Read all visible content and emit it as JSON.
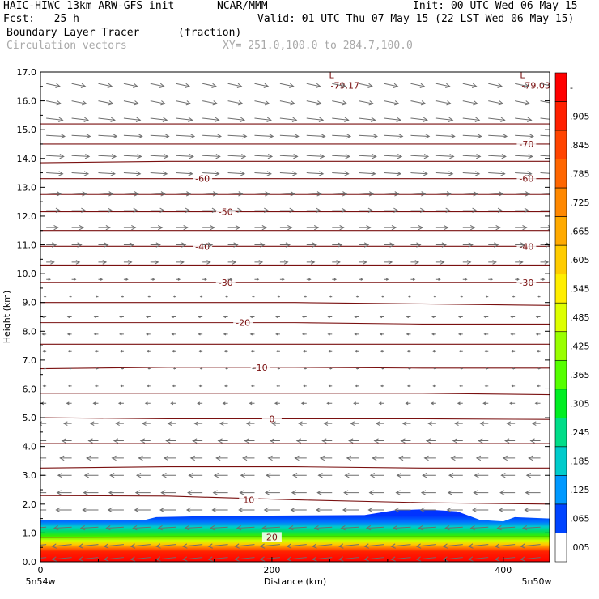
{
  "header": {
    "left1": "HAIC-HIWC 13km ARW-GFS init",
    "center1": "NCAR/MMM",
    "right1": "Init: 00 UTC Wed 06 May 15",
    "left2": "Fcst:   25 h",
    "right2": "Valid: 01 UTC Thu 07 May 15 (22 LST Wed 06 May 15)",
    "field_name": "Boundary Layer Tracer",
    "field_units": "(fraction)",
    "vector_label": "Circulation vectors",
    "xy_label": "XY= 251.0,100.0 to 284.7,100.0"
  },
  "chart_data": {
    "type": "heatmap",
    "title": "Boundary Layer Tracer",
    "xlabel": "Distance (km)",
    "ylabel": "Height (km)",
    "xlim": [
      0,
      440
    ],
    "ylim": [
      0,
      17
    ],
    "x_ticks": [
      0,
      200,
      400
    ],
    "x_tick_labels": [
      "0",
      "200",
      "400"
    ],
    "x_end_labels": [
      "5n54w",
      "5n50w"
    ],
    "y_ticks": [
      0,
      1,
      2,
      3,
      4,
      5,
      6,
      7,
      8,
      9,
      10,
      11,
      12,
      13,
      14,
      15,
      16,
      17
    ],
    "y_tick_labels": [
      "0.0",
      "1.0",
      "2.0",
      "3.0",
      "4.0",
      "5.0",
      "6.0",
      "7.0",
      "8.0",
      "9.0",
      "10.0",
      "11.0",
      "12.0",
      "13.0",
      "14.0",
      "15.0",
      "16.0",
      "17.0"
    ],
    "colorbar_labels": [
      "-",
      ".905",
      ".845",
      ".785",
      ".725",
      ".665",
      ".605",
      ".545",
      ".485",
      ".425",
      ".365",
      ".305",
      ".245",
      ".185",
      ".125",
      ".065",
      ".005"
    ],
    "colorbar_colors": [
      "#ff0000",
      "#ff2000",
      "#ff4400",
      "#ff6600",
      "#ff8800",
      "#ffaa00",
      "#ffcc00",
      "#ffee00",
      "#ddff00",
      "#99ff00",
      "#55ff00",
      "#00ee22",
      "#00dd88",
      "#00cccc",
      "#0099ff",
      "#0044ff",
      "#ffffff"
    ],
    "tracer_top_profile": [
      [
        0,
        1.45
      ],
      [
        90,
        1.45
      ],
      [
        100,
        1.55
      ],
      [
        140,
        1.58
      ],
      [
        200,
        1.6
      ],
      [
        280,
        1.62
      ],
      [
        305,
        1.78
      ],
      [
        330,
        1.82
      ],
      [
        360,
        1.75
      ],
      [
        380,
        1.45
      ],
      [
        400,
        1.4
      ],
      [
        410,
        1.55
      ],
      [
        440,
        1.5
      ]
    ],
    "temperature_contours": [
      {
        "label": "20",
        "y": [
          0.85,
          0.86,
          0.86,
          0.86,
          0.86
        ],
        "label_x": 200
      },
      {
        "label": "10",
        "y": [
          2.3,
          2.28,
          2.15,
          2.05,
          2.0
        ],
        "label_x": 180
      },
      {
        "label": "",
        "y": [
          3.25,
          3.3,
          3.3,
          3.25,
          3.25
        ],
        "label_x": null
      },
      {
        "label": "",
        "y": [
          4.1,
          4.1,
          4.1,
          4.1,
          4.1
        ],
        "label_x": null
      },
      {
        "label": "0",
        "y": [
          5.0,
          4.96,
          4.96,
          4.96,
          4.94
        ],
        "label_x": 200
      },
      {
        "label": "",
        "y": [
          5.85,
          5.85,
          5.85,
          5.85,
          5.8
        ],
        "label_x": null
      },
      {
        "label": "-10",
        "y": [
          6.7,
          6.75,
          6.75,
          6.72,
          6.72
        ],
        "label_x": 190
      },
      {
        "label": "",
        "y": [
          7.55,
          7.55,
          7.55,
          7.55,
          7.55
        ],
        "label_x": null
      },
      {
        "label": "-20",
        "y": [
          8.3,
          8.3,
          8.3,
          8.25,
          8.25
        ],
        "label_x": 175
      },
      {
        "label": "",
        "y": [
          9.0,
          9.0,
          9.0,
          8.95,
          8.9
        ],
        "label_x": null
      },
      {
        "label": "-30",
        "y": [
          9.7,
          9.7,
          9.7,
          9.7,
          9.7
        ],
        "label_x": 160
      },
      {
        "label": "",
        "y": [
          10.3,
          10.3,
          10.3,
          10.3,
          10.3
        ],
        "label_x": null
      },
      {
        "label": "-40",
        "y": [
          10.95,
          10.95,
          10.95,
          10.95,
          10.95
        ],
        "label_x": 140
      },
      {
        "label": "",
        "y": [
          11.5,
          11.5,
          11.5,
          11.5,
          11.5
        ],
        "label_x": null
      },
      {
        "label": "-50",
        "y": [
          12.15,
          12.15,
          12.15,
          12.15,
          12.15
        ],
        "label_x": 160
      },
      {
        "label": "",
        "y": [
          12.75,
          12.75,
          12.75,
          12.75,
          12.75
        ],
        "label_x": null
      },
      {
        "label": "-60",
        "y": [
          13.3,
          13.3,
          13.3,
          13.3,
          13.3
        ],
        "label_x": 140
      },
      {
        "label": "",
        "y": [
          13.85,
          13.9,
          13.9,
          13.9,
          13.9
        ],
        "label_x": null
      },
      {
        "label": "-70",
        "y": [
          14.5,
          14.5,
          14.5,
          14.5,
          14.5
        ],
        "label_x": 420
      },
      {
        "label": "",
        "y": [
          15.2,
          15.2,
          15.2,
          15.2,
          15.2
        ],
        "label_x": null
      }
    ],
    "extra_contour_labels": [
      {
        "label": "-60",
        "x": 420,
        "y": 13.3
      },
      {
        "label": "-40",
        "x": 420,
        "y": 10.95
      },
      {
        "label": "-30",
        "x": 420,
        "y": 9.7
      }
    ],
    "low_labels": [
      {
        "mark": "L",
        "value": "-79.17",
        "x": 255,
        "y": 16.65
      },
      {
        "mark": "L",
        "value": "-79.03",
        "x": 420,
        "y": 16.65
      }
    ],
    "wind_columns_x": [
      5,
      27,
      50,
      72,
      95,
      117,
      140,
      162,
      185,
      207,
      230,
      252,
      275,
      297,
      320,
      342,
      365,
      387,
      410,
      432
    ],
    "wind_rows": [
      {
        "z": 16.6,
        "u": 0.7,
        "w": -0.15
      },
      {
        "z": 16.0,
        "u": 0.75,
        "w": -0.15
      },
      {
        "z": 15.4,
        "u": 0.85,
        "w": -0.1
      },
      {
        "z": 14.8,
        "u": 0.95,
        "w": -0.05
      },
      {
        "z": 14.1,
        "u": 0.9,
        "w": -0.05
      },
      {
        "z": 13.5,
        "u": 0.85,
        "w": -0.05
      },
      {
        "z": 12.8,
        "u": 0.75,
        "w": -0.05
      },
      {
        "z": 12.2,
        "u": 0.7,
        "w": 0
      },
      {
        "z": 11.6,
        "u": 0.6,
        "w": 0
      },
      {
        "z": 11.0,
        "u": 0.5,
        "w": 0
      },
      {
        "z": 10.4,
        "u": 0.4,
        "w": 0
      },
      {
        "z": 9.8,
        "u": 0.2,
        "w": 0
      },
      {
        "z": 9.2,
        "u": -0.1,
        "w": 0
      },
      {
        "z": 8.5,
        "u": -0.2,
        "w": 0
      },
      {
        "z": 7.9,
        "u": -0.2,
        "w": 0
      },
      {
        "z": 7.3,
        "u": -0.15,
        "w": 0
      },
      {
        "z": 6.7,
        "u": -0.1,
        "w": 0
      },
      {
        "z": 6.1,
        "u": -0.15,
        "w": 0
      },
      {
        "z": 5.5,
        "u": -0.25,
        "w": 0
      },
      {
        "z": 4.8,
        "u": -0.4,
        "w": 0
      },
      {
        "z": 4.2,
        "u": -0.5,
        "w": 0
      },
      {
        "z": 3.6,
        "u": -0.6,
        "w": 0
      },
      {
        "z": 3.0,
        "u": -0.7,
        "w": 0
      },
      {
        "z": 2.4,
        "u": -0.75,
        "w": 0
      },
      {
        "z": 1.8,
        "u": -0.8,
        "w": 0
      },
      {
        "z": 1.2,
        "u": -0.9,
        "w": -0.05
      },
      {
        "z": 0.6,
        "u": -1.0,
        "w": -0.1
      },
      {
        "z": 0.15,
        "u": -1.0,
        "w": -0.1
      }
    ]
  }
}
